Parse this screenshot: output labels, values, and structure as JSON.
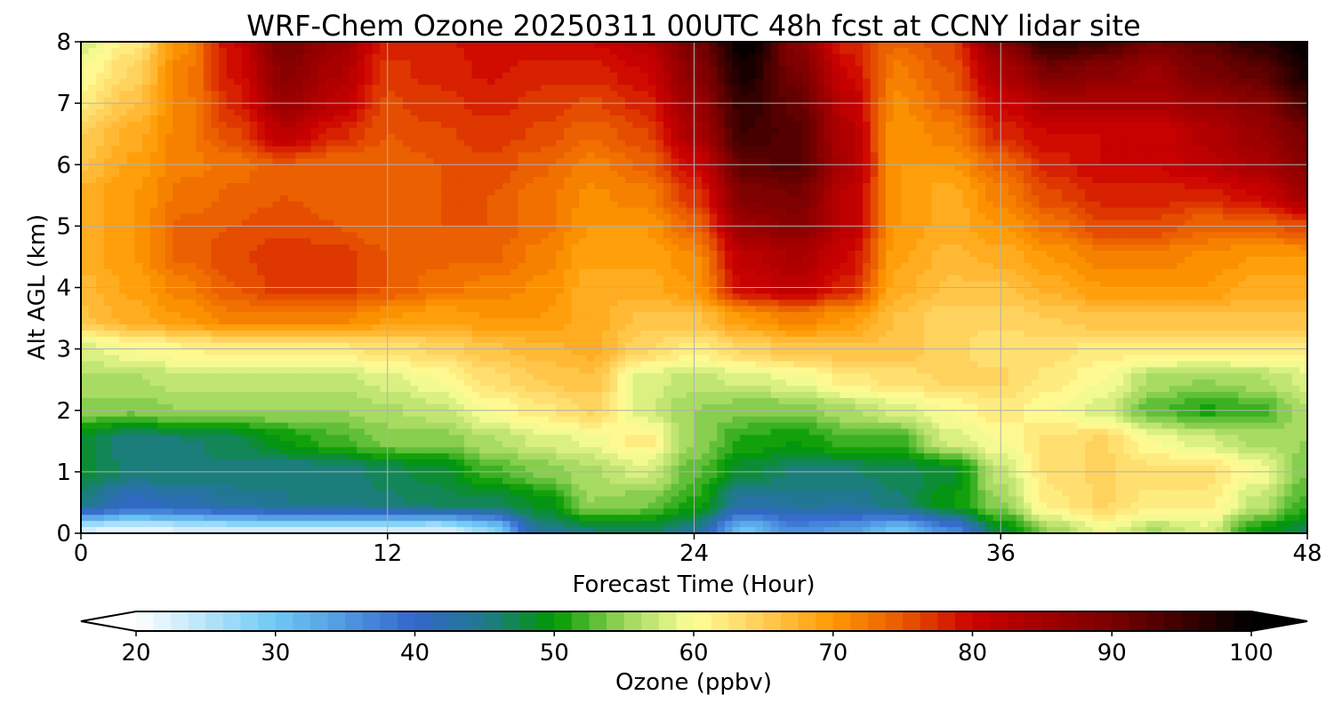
{
  "chart_data": {
    "type": "heatmap",
    "title": "WRF-Chem Ozone  20250311 00UTC 48h fcst at CCNY lidar site",
    "xlabel": "Forecast Time (Hour)",
    "ylabel": "Alt AGL (km)",
    "xlim": [
      0,
      48
    ],
    "ylim": [
      0,
      8
    ],
    "x_ticks": [
      "0",
      "12",
      "24",
      "36",
      "48"
    ],
    "y_ticks": [
      "0",
      "1",
      "2",
      "3",
      "4",
      "5",
      "6",
      "7",
      "8"
    ],
    "grid": true,
    "x": [
      0,
      2,
      4,
      6,
      8,
      10,
      12,
      14,
      16,
      18,
      20,
      22,
      24,
      26,
      28,
      30,
      32,
      34,
      36,
      38,
      40,
      42,
      44,
      46,
      48
    ],
    "y": [
      0,
      0.5,
      1,
      1.5,
      2,
      2.5,
      3,
      3.5,
      4,
      4.5,
      5,
      5.5,
      6,
      6.5,
      7,
      7.5,
      8
    ],
    "z": [
      [
        22,
        21,
        22,
        23,
        23,
        23,
        23,
        22,
        27,
        44,
        46,
        47,
        44,
        30,
        36,
        34,
        30,
        36,
        48,
        55,
        59,
        56,
        58,
        50,
        47
      ],
      [
        45,
        41,
        42,
        44,
        45,
        45,
        46,
        47,
        47,
        49,
        55,
        54,
        51,
        43,
        44,
        44,
        46,
        50,
        55,
        62,
        64,
        62,
        62,
        57,
        52
      ],
      [
        48,
        46,
        46,
        46,
        45,
        45,
        47,
        48,
        52,
        54,
        56,
        58,
        53,
        48,
        46,
        46,
        47,
        48,
        57,
        63,
        64,
        63,
        63,
        60,
        54
      ],
      [
        48,
        45,
        46,
        47,
        50,
        52,
        54,
        54,
        56,
        58,
        59,
        62,
        55,
        51,
        50,
        52,
        52,
        58,
        60,
        63,
        64,
        60,
        58,
        56,
        55
      ],
      [
        54,
        54,
        55,
        55,
        55,
        55,
        56,
        57,
        60,
        62,
        64,
        58,
        55,
        54,
        54,
        56,
        58,
        60,
        62,
        60,
        58,
        53,
        51,
        52,
        56
      ],
      [
        56,
        56,
        57,
        57,
        57,
        57,
        58,
        60,
        63,
        65,
        66,
        58,
        57,
        58,
        59,
        62,
        63,
        64,
        64,
        62,
        60,
        56,
        55,
        56,
        58
      ],
      [
        58,
        60,
        61,
        62,
        62,
        62,
        63,
        64,
        66,
        67,
        68,
        64,
        62,
        64,
        66,
        66,
        66,
        64,
        63,
        63,
        62,
        62,
        62,
        62,
        62
      ],
      [
        66,
        68,
        70,
        72,
        72,
        72,
        70,
        69,
        70,
        70,
        68,
        66,
        66,
        70,
        72,
        70,
        66,
        64,
        64,
        65,
        66,
        66,
        66,
        66,
        66
      ],
      [
        67,
        69,
        72,
        75,
        77,
        77,
        75,
        73,
        72,
        71,
        68,
        68,
        70,
        80,
        82,
        78,
        68,
        66,
        66,
        68,
        70,
        70,
        70,
        68,
        68
      ],
      [
        68,
        70,
        74,
        76,
        77,
        77,
        75,
        74,
        74,
        72,
        69,
        69,
        71,
        82,
        84,
        80,
        69,
        67,
        68,
        70,
        72,
        72,
        71,
        70,
        70
      ],
      [
        68,
        70,
        74,
        75,
        76,
        75,
        74,
        75,
        75,
        73,
        70,
        70,
        74,
        86,
        88,
        82,
        70,
        68,
        70,
        73,
        76,
        76,
        74,
        74,
        76
      ],
      [
        68,
        70,
        73,
        74,
        75,
        74,
        74,
        75,
        75,
        73,
        71,
        72,
        77,
        89,
        90,
        82,
        70,
        68,
        72,
        76,
        78,
        78,
        78,
        80,
        85
      ],
      [
        66,
        69,
        72,
        73,
        75,
        74,
        74,
        75,
        76,
        74,
        72,
        74,
        80,
        92,
        93,
        84,
        70,
        70,
        74,
        78,
        80,
        80,
        82,
        84,
        88
      ],
      [
        65,
        68,
        72,
        76,
        82,
        78,
        75,
        76,
        77,
        76,
        74,
        76,
        84,
        95,
        93,
        83,
        70,
        72,
        78,
        80,
        80,
        80,
        83,
        86,
        90
      ],
      [
        62,
        66,
        72,
        78,
        86,
        82,
        76,
        77,
        78,
        77,
        76,
        78,
        86,
        96,
        92,
        82,
        71,
        74,
        80,
        84,
        84,
        84,
        86,
        88,
        94
      ],
      [
        60,
        64,
        72,
        79,
        88,
        84,
        77,
        78,
        79,
        78,
        78,
        80,
        88,
        98,
        90,
        80,
        72,
        75,
        84,
        90,
        88,
        86,
        90,
        92,
        98
      ],
      [
        58,
        62,
        71,
        80,
        90,
        86,
        78,
        78,
        80,
        80,
        80,
        82,
        90,
        100,
        88,
        78,
        74,
        76,
        88,
        96,
        94,
        90,
        92,
        96,
        100
      ]
    ]
  },
  "colorbar": {
    "label": "Ozone  (ppbv)",
    "min": 20,
    "max": 100,
    "step": 1.25,
    "ticks": [
      "20",
      "30",
      "40",
      "50",
      "60",
      "70",
      "80",
      "90",
      "100"
    ],
    "color_stops": [
      {
        "value": 20,
        "color": "#ffffff"
      },
      {
        "value": 30,
        "color": "#6ec9f5"
      },
      {
        "value": 40,
        "color": "#3366cc"
      },
      {
        "value": 45,
        "color": "#1f7a8c"
      },
      {
        "value": 50,
        "color": "#009900"
      },
      {
        "value": 55,
        "color": "#9bd65a"
      },
      {
        "value": 60,
        "color": "#ffff99"
      },
      {
        "value": 65,
        "color": "#ffcc55"
      },
      {
        "value": 70,
        "color": "#ff9900"
      },
      {
        "value": 75,
        "color": "#e85800"
      },
      {
        "value": 80,
        "color": "#cc0000"
      },
      {
        "value": 90,
        "color": "#7a0000"
      },
      {
        "value": 100,
        "color": "#000000"
      }
    ]
  }
}
